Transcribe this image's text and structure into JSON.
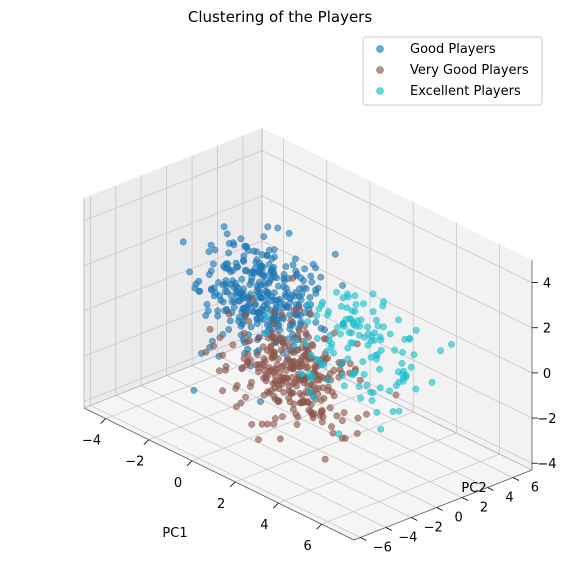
{
  "chart_data": {
    "type": "scatter",
    "projection": "3d",
    "title": "Clustering of the Players",
    "xlabel": "PC1",
    "ylabel": "PC2",
    "zlabel": "",
    "xlim": [
      -5,
      7.5
    ],
    "ylim": [
      -6.5,
      7.5
    ],
    "zlim": [
      -4.3,
      5
    ],
    "xticks": [
      -4,
      -2,
      0,
      2,
      4,
      6
    ],
    "yticks": [
      -6,
      -4,
      -2,
      0,
      2,
      4,
      6
    ],
    "zticks": [
      -4,
      -2,
      0,
      2,
      4
    ],
    "grid": true,
    "legend": "top-right",
    "series": [
      {
        "name": "Good Players",
        "color": "#1f77b4",
        "x_mean": -1.5,
        "x_sd": 1.2,
        "y_mean": 1.5,
        "y_sd": 1.3,
        "z_mean": 0.5,
        "z_sd": 1.1,
        "n_points": 330
      },
      {
        "name": "Very Good Players",
        "color": "#8c564b",
        "x_mean": 1.5,
        "x_sd": 1.2,
        "y_mean": -1.0,
        "y_sd": 1.4,
        "z_mean": -1.0,
        "z_sd": 0.9,
        "n_points": 300
      },
      {
        "name": "Excellent Players",
        "color": "#17becf",
        "x_mean": 3.0,
        "x_sd": 1.5,
        "y_mean": 1.5,
        "y_sd": 1.6,
        "z_mean": 0.5,
        "z_sd": 1.2,
        "n_points": 130
      }
    ]
  }
}
